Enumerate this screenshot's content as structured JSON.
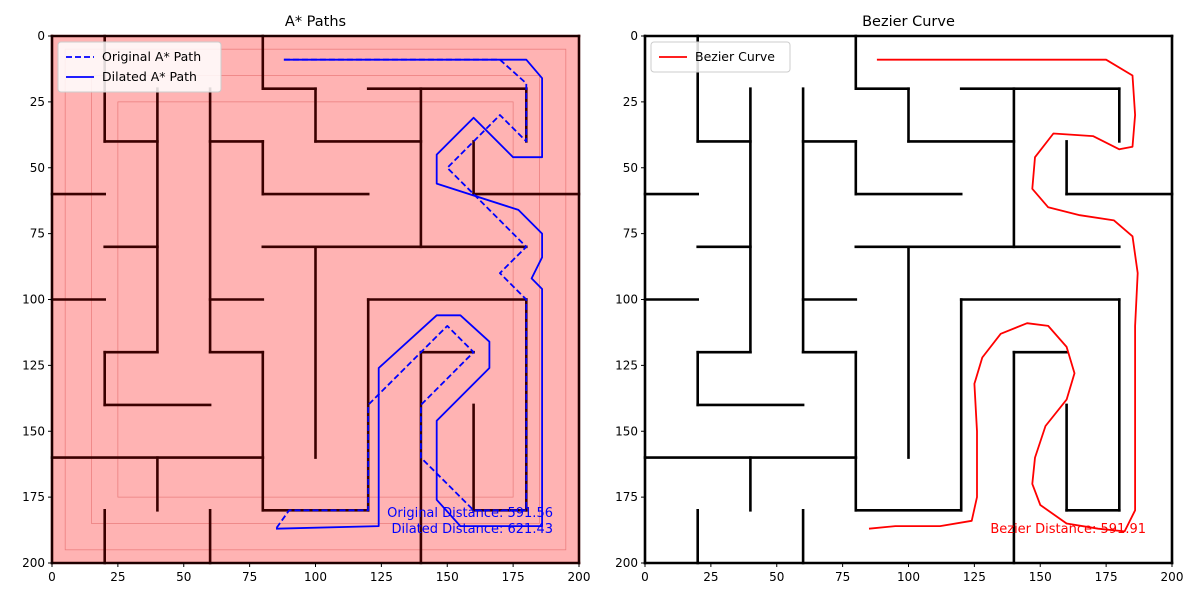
{
  "chart_data": [
    {
      "type": "line",
      "title": "A* Paths",
      "xlim": [
        0,
        200
      ],
      "ylim": [
        200,
        0
      ],
      "xticks": [
        0,
        25,
        50,
        75,
        100,
        125,
        150,
        175,
        200
      ],
      "yticks": [
        0,
        25,
        50,
        75,
        100,
        125,
        150,
        175,
        200
      ],
      "background_color": "#ffb3b3",
      "maze_color": "#000000",
      "legend": {
        "placement": "upper-left",
        "entries": [
          "Original A* Path",
          "Dilated A* Path"
        ]
      },
      "series": [
        {
          "name": "Original A* Path",
          "style": "dashed",
          "color": "#0000ff",
          "points": [
            [
              88,
              9
            ],
            [
              170,
              9
            ],
            [
              180,
              18
            ],
            [
              180,
              40
            ],
            [
              170,
              30
            ],
            [
              150,
              50
            ],
            [
              180,
              80
            ],
            [
              170,
              90
            ],
            [
              180,
              100
            ],
            [
              180,
              180
            ],
            [
              160,
              180
            ],
            [
              140,
              160
            ],
            [
              140,
              140
            ],
            [
              160,
              120
            ],
            [
              150,
              110
            ],
            [
              120,
              140
            ],
            [
              120,
              180
            ],
            [
              90,
              180
            ],
            [
              85,
              187
            ]
          ]
        },
        {
          "name": "Dilated A* Path",
          "style": "solid",
          "color": "#0000ff",
          "points": [
            [
              88,
              9
            ],
            [
              180,
              9
            ],
            [
              186,
              16
            ],
            [
              186,
              46
            ],
            [
              175,
              46
            ],
            [
              160,
              31
            ],
            [
              146,
              45
            ],
            [
              146,
              56
            ],
            [
              177,
              66
            ],
            [
              186,
              75
            ],
            [
              186,
              84
            ],
            [
              182,
              92
            ],
            [
              186,
              96
            ],
            [
              186,
              186
            ],
            [
              155,
              186
            ],
            [
              146,
              176
            ],
            [
              146,
              146
            ],
            [
              166,
              126
            ],
            [
              166,
              116
            ],
            [
              155,
              106
            ],
            [
              146,
              106
            ],
            [
              124,
              126
            ],
            [
              124,
              186
            ],
            [
              85,
              187
            ]
          ]
        }
      ],
      "annotations": [
        "Original Distance: 591.56",
        "Dilated Distance: 621.43"
      ]
    },
    {
      "type": "line",
      "title": "Bezier Curve",
      "xlim": [
        0,
        200
      ],
      "ylim": [
        200,
        0
      ],
      "xticks": [
        0,
        25,
        50,
        75,
        100,
        125,
        150,
        175,
        200
      ],
      "yticks": [
        0,
        25,
        50,
        75,
        100,
        125,
        150,
        175,
        200
      ],
      "background_color": "#ffffff",
      "maze_color": "#000000",
      "legend": {
        "placement": "upper-left",
        "entries": [
          "Bezier Curve"
        ]
      },
      "series": [
        {
          "name": "Bezier Curve",
          "style": "solid",
          "color": "#ff0000",
          "points": [
            [
              88,
              9
            ],
            [
              175,
              9
            ],
            [
              185,
              15
            ],
            [
              186,
              30
            ],
            [
              185,
              42
            ],
            [
              180,
              43
            ],
            [
              170,
              38
            ],
            [
              155,
              37
            ],
            [
              148,
              46
            ],
            [
              147,
              58
            ],
            [
              153,
              65
            ],
            [
              165,
              68
            ],
            [
              178,
              70
            ],
            [
              185,
              76
            ],
            [
              187,
              90
            ],
            [
              186,
              110
            ],
            [
              186,
              150
            ],
            [
              186,
              180
            ],
            [
              182,
              188
            ],
            [
              172,
              187
            ],
            [
              160,
              185
            ],
            [
              150,
              178
            ],
            [
              147,
              170
            ],
            [
              148,
              160
            ],
            [
              152,
              148
            ],
            [
              160,
              138
            ],
            [
              163,
              128
            ],
            [
              160,
              118
            ],
            [
              153,
              110
            ],
            [
              145,
              109
            ],
            [
              135,
              113
            ],
            [
              128,
              122
            ],
            [
              125,
              132
            ],
            [
              126,
              150
            ],
            [
              126,
              175
            ],
            [
              124,
              184
            ],
            [
              112,
              186
            ],
            [
              95,
              186
            ],
            [
              85,
              187
            ]
          ]
        }
      ],
      "annotations": [
        "Bezier Distance: 591.91"
      ]
    }
  ]
}
